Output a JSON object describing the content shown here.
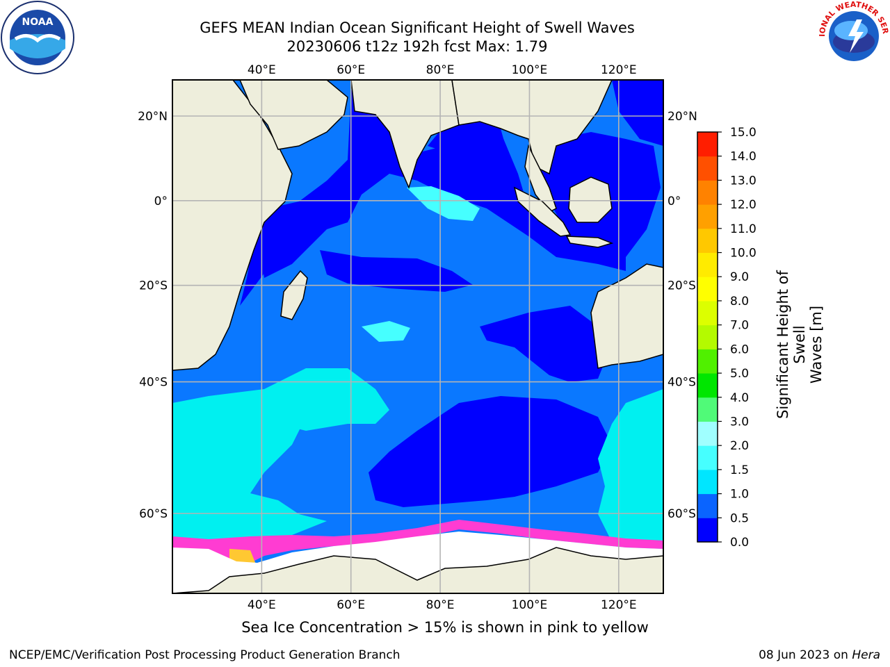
{
  "header": {
    "title_line1": "GEFS MEAN Indian Ocean Significant Height of Swell Waves",
    "title_line2": "20230606 t12z 192h fcst   Max: 1.79"
  },
  "logos": {
    "left_icon": "noaa-logo",
    "left_text": "NOAA",
    "right_icon": "nws-logo",
    "right_text": "NATIONAL WEATHER SERVICE"
  },
  "map": {
    "lon_ticks": [
      "40°E",
      "60°E",
      "80°E",
      "100°E",
      "120°E"
    ],
    "lat_ticks": [
      "20°N",
      "0°",
      "20°S",
      "40°S",
      "60°S"
    ],
    "extent": {
      "lon": [
        20,
        130
      ],
      "lat": [
        -72,
        27
      ]
    },
    "grid": true
  },
  "colorbar": {
    "label_line1": "Significant Height of Swell",
    "label_line2": "Waves [m]",
    "ticks": [
      "0.0",
      "0.5",
      "1.0",
      "1.5",
      "2.0",
      "3.0",
      "4.0",
      "5.0",
      "6.0",
      "7.0",
      "8.0",
      "9.0",
      "10.0",
      "11.0",
      "12.0",
      "13.0",
      "14.0",
      "15.0"
    ],
    "colors": [
      "#0000ff",
      "#0a64ff",
      "#00e6ff",
      "#46ffff",
      "#a0ffff",
      "#50fa78",
      "#00e600",
      "#50f000",
      "#b4fa00",
      "#dcff00",
      "#ffff00",
      "#ffeb00",
      "#ffc800",
      "#ffa000",
      "#ff8200",
      "#ff5000",
      "#ff1e00"
    ],
    "colors_key": [
      "#0000ff",
      "#0a64ff",
      "#00e6ff",
      "#46ffff",
      "#a0ffff",
      "#50fa78",
      "#00e600",
      "#50f000",
      "#b4fa00",
      "#dcff00",
      "#ffff00",
      "#ffeb00",
      "#ffc800",
      "#ffa000",
      "#ff8200",
      "#ff5000",
      "#ff1e00"
    ]
  },
  "palette": {
    "land": "#eeeedc",
    "ocean_low": "#0000ff",
    "ocean_mid": "#0a78ff",
    "ocean_high": "#00f0f0",
    "ocean_high2": "#46ffff",
    "ice_pink": "#ff3cd2",
    "ice_yellow": "#ffc832",
    "grid": "#b4b4b4"
  },
  "footer": {
    "note": "Sea Ice Concentration > 15% is shown in pink to yellow",
    "left": "NCEP/EMC/Verification Post Processing Product Generation Branch",
    "right_date": "08 Jun 2023 on ",
    "right_host": "Hera"
  }
}
